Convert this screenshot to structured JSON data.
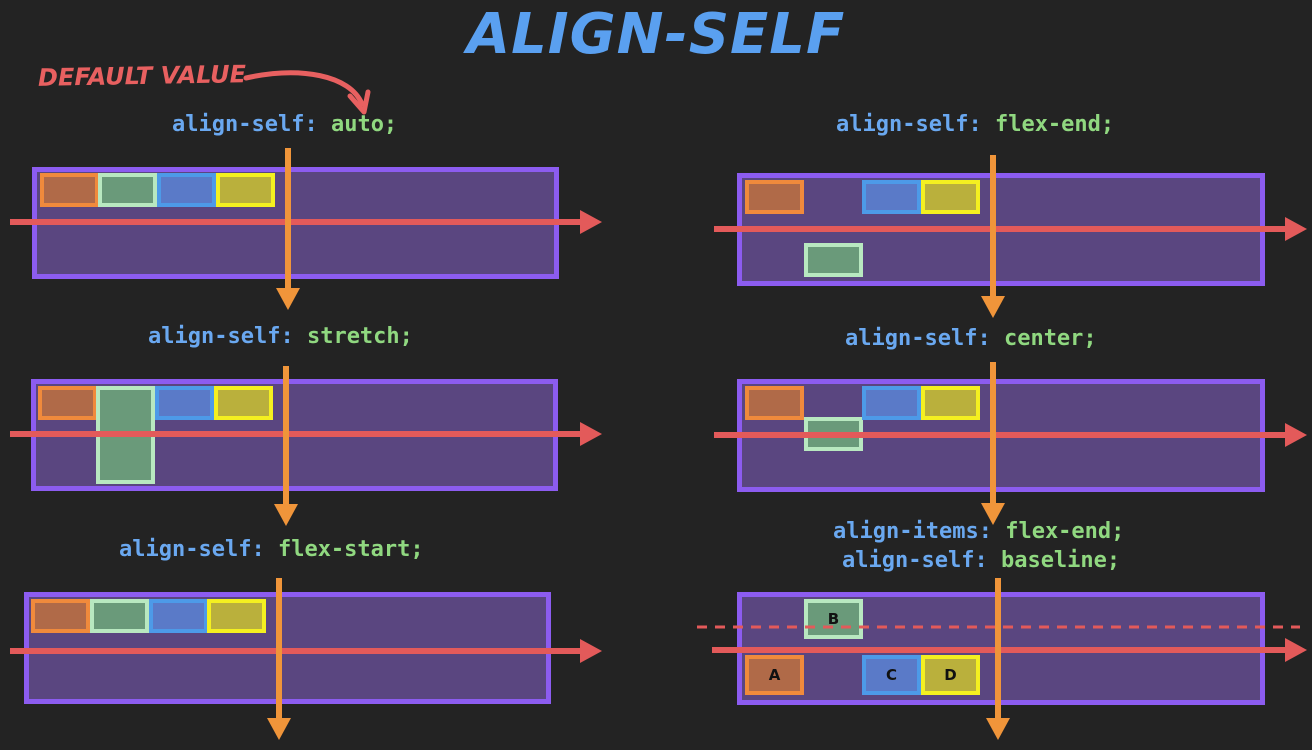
{
  "title": "ALIGN-SELF",
  "note": "DEFAULT VALUE",
  "colors": {
    "title": "#5aa0f0",
    "note": "#e86060",
    "property": "#6aa8f0",
    "value": "#90d880",
    "main_axis": "#e35a5a",
    "cross_axis": "#f0953a",
    "container_border": "#8c5cf0",
    "container_fill": "#5a4680"
  },
  "examples": [
    {
      "lines": [
        {
          "prop": "align-self:",
          "value": "auto;"
        }
      ]
    },
    {
      "lines": [
        {
          "prop": "align-self:",
          "value": "stretch;"
        }
      ]
    },
    {
      "lines": [
        {
          "prop": "align-self:",
          "value": "flex-start;"
        }
      ]
    },
    {
      "lines": [
        {
          "prop": "align-self:",
          "value": "flex-end;"
        }
      ]
    },
    {
      "lines": [
        {
          "prop": "align-self:",
          "value": "center;"
        }
      ]
    },
    {
      "lines": [
        {
          "prop": "align-items:",
          "value": "flex-end;"
        },
        {
          "prop": "align-self:",
          "value": "baseline;"
        }
      ]
    }
  ],
  "baseline_items": [
    "A",
    "B",
    "C",
    "D"
  ]
}
